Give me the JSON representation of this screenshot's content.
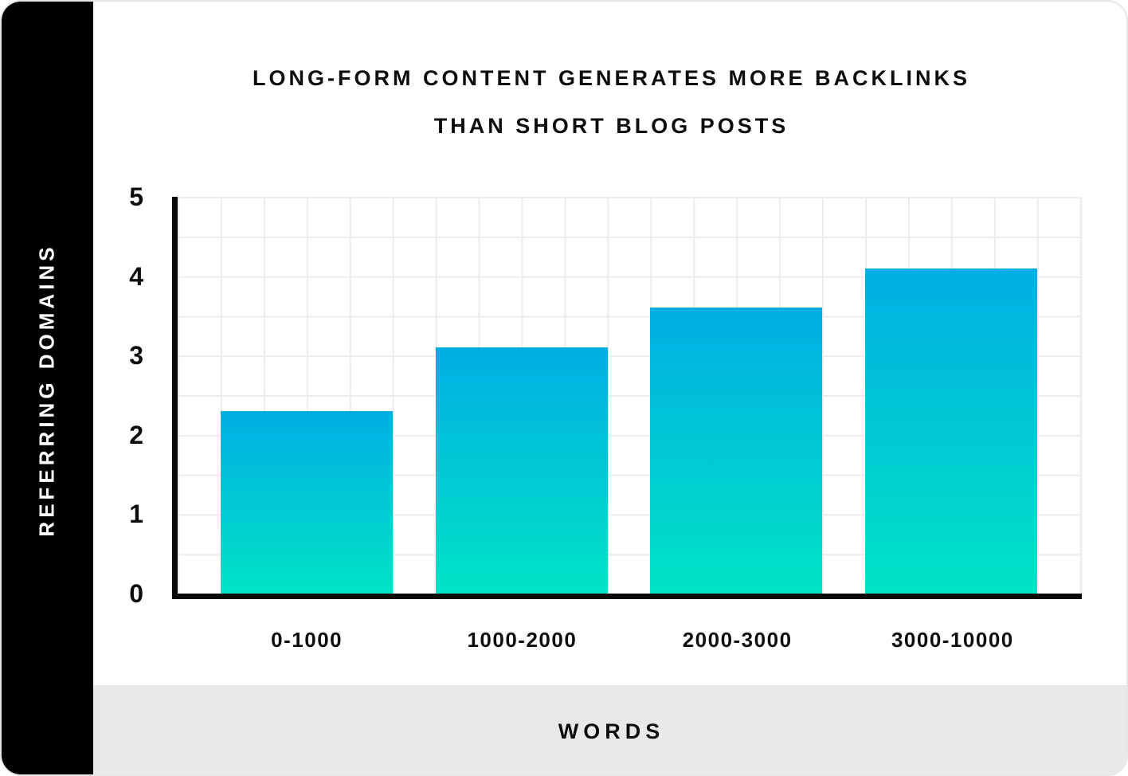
{
  "title": {
    "line1": "LONG-FORM CONTENT GENERATES MORE BACKLINKS",
    "line2": "THAN SHORT BLOG POSTS"
  },
  "chart_data": {
    "type": "bar",
    "categories": [
      "0-1000",
      "1000-2000",
      "2000-3000",
      "3000-10000"
    ],
    "values": [
      2.3,
      3.1,
      3.6,
      4.1
    ],
    "title": "LONG-FORM CONTENT GENERATES MORE BACKLINKS THAN SHORT BLOG POSTS",
    "xlabel": "WORDS",
    "ylabel": "REFERRING DOMAINS",
    "ylim": [
      0,
      5
    ],
    "yticks": [
      5,
      4,
      3,
      2,
      1,
      0
    ],
    "grid": true,
    "grid_minor_step": 0.5,
    "legend": "none"
  },
  "colors": {
    "bar_gradient_top": "#00aee3",
    "bar_gradient_bottom": "#00e4c6",
    "grid_line": "#ececec",
    "axis": "#0a0a0a",
    "sidebar_bg": "#000000",
    "footer_bg": "#e9e9e9",
    "card_border": "#e6e6e6",
    "text": "#0d0d0d"
  }
}
